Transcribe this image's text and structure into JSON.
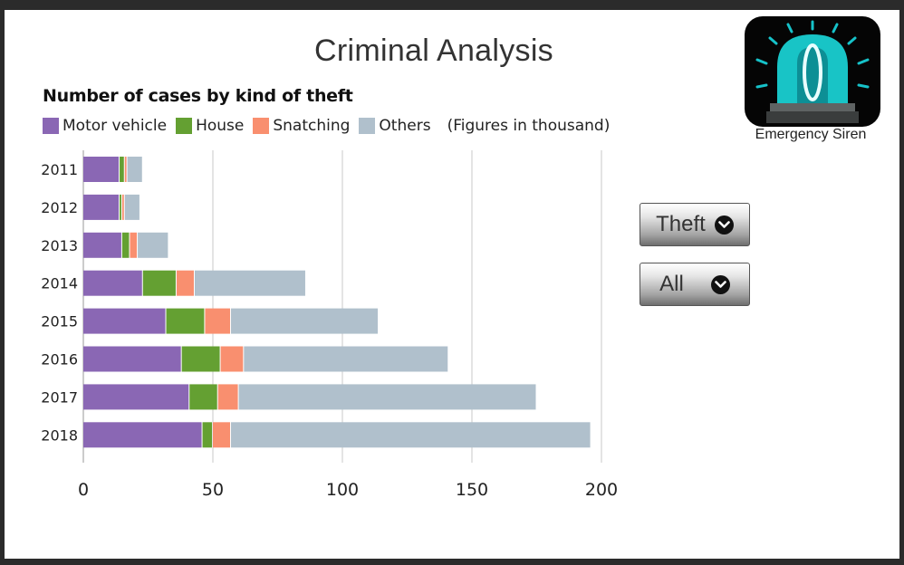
{
  "app": {
    "title": "Criminal Analysis"
  },
  "siren_widget": {
    "label": "Emergency Siren",
    "icon": "emergency-siren-icon"
  },
  "filters": {
    "category_dropdown": "Theft",
    "scope_dropdown": "All"
  },
  "chart_data": {
    "type": "bar",
    "orientation": "horizontal",
    "stacked": true,
    "title": "Number of cases by kind of theft",
    "note": "(Figures in thousand)",
    "categories": [
      "2011",
      "2012",
      "2013",
      "2014",
      "2015",
      "2016",
      "2017",
      "2018"
    ],
    "series": [
      {
        "name": "Motor vehicle",
        "color": "#8a67b4",
        "values": [
          14,
          14,
          15,
          23,
          32,
          38,
          41,
          46
        ]
      },
      {
        "name": "House",
        "color": "#64a032",
        "values": [
          2,
          1,
          3,
          13,
          15,
          15,
          11,
          4
        ]
      },
      {
        "name": "Snatching",
        "color": "#f98f6f",
        "values": [
          1,
          1,
          3,
          7,
          10,
          9,
          8,
          7
        ]
      },
      {
        "name": "Others",
        "color": "#b0c0cc",
        "values": [
          6,
          6,
          12,
          43,
          57,
          79,
          115,
          139
        ]
      }
    ],
    "x_ticks": [
      "0",
      "50",
      "100",
      "150",
      "200"
    ],
    "xlim": [
      0,
      200
    ],
    "grid": true,
    "legend_position": "top"
  }
}
